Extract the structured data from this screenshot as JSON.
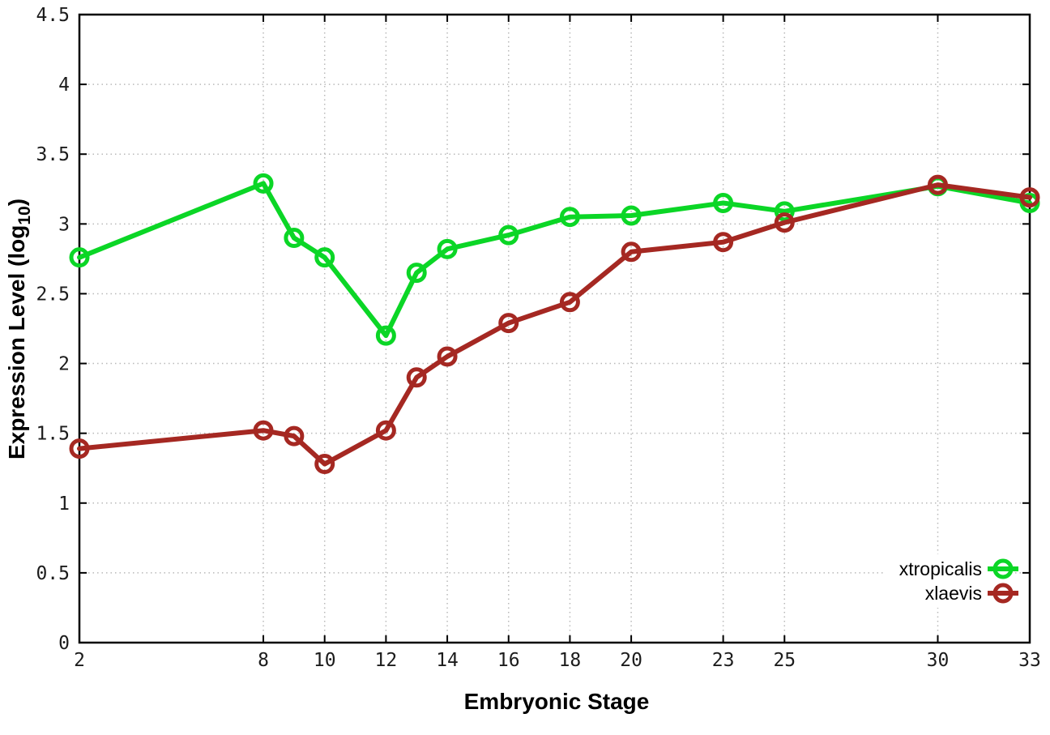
{
  "chart_data": {
    "type": "line",
    "title": "",
    "xlabel": "Embryonic Stage",
    "ylabel": "Expression Level (log10)",
    "ylabel_parts": {
      "main": "Expression Level (log",
      "sub": "10",
      "end": ")"
    },
    "x": [
      2,
      8,
      9,
      10,
      12,
      13,
      14,
      16,
      18,
      20,
      23,
      25,
      30,
      33
    ],
    "series": [
      {
        "name": "xtropicalis",
        "color": "#0bd626",
        "values": [
          2.76,
          3.29,
          2.9,
          2.76,
          2.2,
          2.65,
          2.82,
          2.92,
          3.05,
          3.06,
          3.15,
          3.09,
          3.27,
          3.15
        ]
      },
      {
        "name": "xlaevis",
        "color": "#a52822",
        "values": [
          1.39,
          1.52,
          1.48,
          1.28,
          1.52,
          1.9,
          2.05,
          2.29,
          2.44,
          2.8,
          2.87,
          3.01,
          3.28,
          3.19
        ]
      }
    ],
    "xlim": [
      2,
      33
    ],
    "ylim": [
      0,
      4.5
    ],
    "xticks": [
      2,
      8,
      10,
      12,
      14,
      16,
      18,
      20,
      23,
      25,
      30,
      33
    ],
    "xtick_labels": [
      "2",
      "8",
      "10",
      "12",
      "14",
      "16",
      "18",
      "20",
      "23",
      "25",
      "30",
      "33"
    ],
    "yticks": [
      0,
      0.5,
      1,
      1.5,
      2,
      2.5,
      3,
      3.5,
      4,
      4.5
    ],
    "ytick_labels": [
      "0",
      "0.5",
      "1",
      "1.5",
      "2",
      "2.5",
      "3",
      "3.5",
      "4",
      "4.5"
    ],
    "grid": true,
    "grid_style": "dotted",
    "legend_position": "bottom-right",
    "marker": "open-circle",
    "colors": {
      "grid": "#b9b9b9",
      "axis": "#000000",
      "background": "#ffffff",
      "tick_label": "#1c1c1c"
    }
  }
}
